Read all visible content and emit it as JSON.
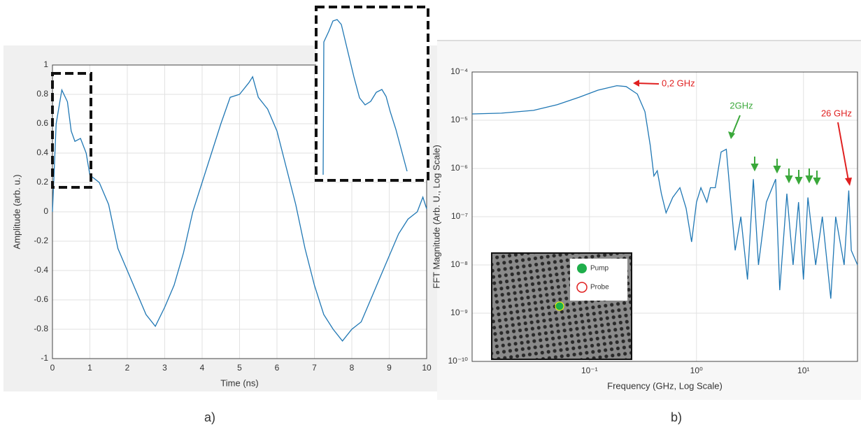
{
  "chart_data": [
    {
      "type": "line",
      "panel_label": "a)",
      "xlabel": "Time (ns)",
      "ylabel": "Amplitude (arb. u.)",
      "color": "#1f77b4",
      "grid": true,
      "x": [
        0,
        0.1,
        0.25,
        0.4,
        0.5,
        0.6,
        0.75,
        0.9,
        1.0,
        1.25,
        1.5,
        1.75,
        2.0,
        2.25,
        2.5,
        2.75,
        3.0,
        3.25,
        3.5,
        3.75,
        4.0,
        4.25,
        4.5,
        4.75,
        5.0,
        5.25,
        5.35,
        5.5,
        5.75,
        6.0,
        6.25,
        6.5,
        6.75,
        7.0,
        7.25,
        7.5,
        7.75,
        8.0,
        8.25,
        8.5,
        8.75,
        9.0,
        9.25,
        9.5,
        9.75,
        9.9,
        10
      ],
      "values": [
        0,
        0.6,
        0.83,
        0.75,
        0.55,
        0.48,
        0.5,
        0.4,
        0.25,
        0.2,
        0.05,
        -0.25,
        -0.4,
        -0.55,
        -0.7,
        -0.78,
        -0.65,
        -0.5,
        -0.28,
        0,
        0.2,
        0.4,
        0.6,
        0.78,
        0.8,
        0.88,
        0.92,
        0.78,
        0.7,
        0.55,
        0.3,
        0.05,
        -0.25,
        -0.5,
        -0.7,
        -0.8,
        -0.88,
        -0.8,
        -0.75,
        -0.6,
        -0.45,
        -0.3,
        -0.15,
        -0.05,
        0,
        0.1,
        0.02
      ],
      "xlim": [
        0,
        10
      ],
      "ylim": [
        -1,
        1
      ],
      "xticks": [
        0,
        1,
        2,
        3,
        4,
        5,
        6,
        7,
        8,
        9,
        10
      ],
      "yticks": [
        -1,
        -0.8,
        -0.6,
        -0.4,
        -0.2,
        0,
        0.2,
        0.4,
        0.6,
        0.8,
        1
      ]
    },
    {
      "type": "line",
      "panel_label": "b)",
      "xlabel": "Frequency (GHz, Log Scale)",
      "ylabel": "FFT Magnitude (Arb. U., Log Scale)",
      "color": "#1f77b4",
      "grid": true,
      "log_x": true,
      "log_y": true,
      "x": [
        0.008,
        0.015,
        0.03,
        0.05,
        0.08,
        0.12,
        0.18,
        0.22,
        0.28,
        0.33,
        0.37,
        0.4,
        0.43,
        0.47,
        0.52,
        0.6,
        0.7,
        0.8,
        0.9,
        1.0,
        1.1,
        1.25,
        1.35,
        1.5,
        1.7,
        1.9,
        2.1,
        2.3,
        2.6,
        3.0,
        3.4,
        3.8,
        4.5,
        5.5,
        6,
        7,
        8,
        9,
        10,
        11,
        13,
        15,
        18,
        20,
        24,
        26.5,
        28,
        32
      ],
      "values": [
        1.35e-05,
        1.4e-05,
        1.6e-05,
        2.1e-05,
        3e-05,
        4.2e-05,
        5.2e-05,
        5e-05,
        3.5e-05,
        1.5e-05,
        3e-06,
        7e-07,
        9e-07,
        3e-07,
        1.2e-07,
        2.5e-07,
        4e-07,
        1.5e-07,
        3e-08,
        2e-07,
        4e-07,
        2e-07,
        4e-07,
        4e-07,
        2.2e-06,
        2.5e-06,
        2e-07,
        2e-08,
        1e-07,
        5e-09,
        6e-07,
        1e-08,
        2e-07,
        6e-07,
        3e-09,
        3e-07,
        1e-08,
        2e-07,
        5e-09,
        2.5e-07,
        1e-08,
        1e-07,
        2e-09,
        1e-07,
        1e-08,
        3.5e-07,
        2e-08,
        1e-08
      ],
      "xlim": [
        0.008,
        32
      ],
      "ylim": [
        1e-10,
        0.0001
      ],
      "xticks": [
        {
          "value": 0.1,
          "label": "10⁻¹"
        },
        {
          "value": 1,
          "label": "10⁰"
        },
        {
          "value": 10,
          "label": "10¹"
        }
      ],
      "yticks": [
        {
          "value": 1e-10,
          "label": "10⁻¹⁰"
        },
        {
          "value": 1e-09,
          "label": "10⁻⁹"
        },
        {
          "value": 1e-08,
          "label": "10⁻⁸"
        },
        {
          "value": 1e-07,
          "label": "10⁻⁷"
        },
        {
          "value": 1e-06,
          "label": "10⁻⁶"
        },
        {
          "value": 1e-05,
          "label": "10⁻⁵"
        },
        {
          "value": 0.0001,
          "label": "10⁻⁴"
        }
      ],
      "annotations": [
        {
          "text": "0,2 GHz",
          "color": "#e02020"
        },
        {
          "text": "2GHz",
          "color": "#3aa83a"
        },
        {
          "text": "26 GHz",
          "color": "#e02020"
        }
      ],
      "inset_legend": [
        "Pump",
        "Probe"
      ]
    }
  ]
}
